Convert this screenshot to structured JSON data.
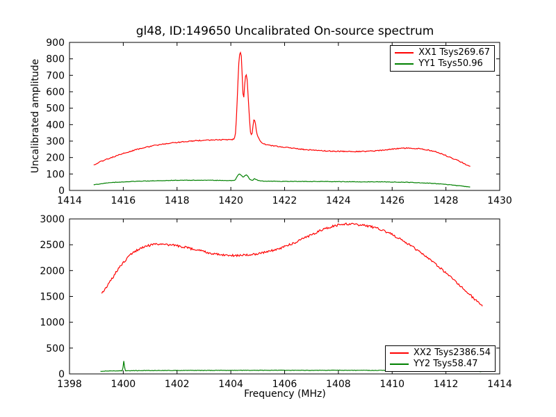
{
  "figure": {
    "title": "gl48, ID:149650 Uncalibrated On-source spectrum",
    "xlabel": "Frequency (MHz)",
    "ylabel": "Uncalibrated amplitude",
    "background": "#ffffff",
    "axis_color": "#000000",
    "series_red": "#ff0000",
    "series_green": "#008000"
  },
  "chart_data": [
    {
      "type": "line",
      "title": "gl48, ID:149650 Uncalibrated On-source spectrum",
      "xlabel": "",
      "ylabel": "Uncalibrated amplitude",
      "xlim": [
        1414,
        1430
      ],
      "ylim": [
        0,
        900
      ],
      "xticks": [
        1414,
        1416,
        1418,
        1420,
        1422,
        1424,
        1426,
        1428,
        1430
      ],
      "yticks": [
        0,
        100,
        200,
        300,
        400,
        500,
        600,
        700,
        800,
        900
      ],
      "grid": false,
      "legend_position": "upper right",
      "series": [
        {
          "name": "XX1 Tsys269.67",
          "color": "#ff0000",
          "x": [
            1414.9,
            1415.2,
            1415.6,
            1416.0,
            1416.4,
            1416.8,
            1417.2,
            1417.6,
            1418.0,
            1418.4,
            1418.8,
            1419.2,
            1419.6,
            1420.0,
            1420.1,
            1420.18,
            1420.24,
            1420.3,
            1420.35,
            1420.4,
            1420.44,
            1420.48,
            1420.52,
            1420.56,
            1420.6,
            1420.65,
            1420.7,
            1420.75,
            1420.8,
            1420.85,
            1420.9,
            1420.95,
            1421.0,
            1421.1,
            1421.2,
            1421.4,
            1421.7,
            1422.0,
            1422.4,
            1422.8,
            1423.2,
            1423.6,
            1424.0,
            1424.4,
            1424.8,
            1425.2,
            1425.6,
            1426.0,
            1426.4,
            1426.8,
            1427.2,
            1427.5,
            1427.8,
            1428.1,
            1428.4,
            1428.7,
            1428.9
          ],
          "y": [
            155,
            178,
            202,
            224,
            244,
            261,
            274,
            284,
            292,
            298,
            303,
            306,
            308,
            308,
            312,
            360,
            560,
            780,
            838,
            800,
            620,
            565,
            650,
            705,
            688,
            555,
            420,
            340,
            352,
            430,
            424,
            360,
            330,
            300,
            286,
            275,
            268,
            262,
            255,
            248,
            243,
            240,
            238,
            237,
            237,
            239,
            244,
            251,
            257,
            256,
            249,
            240,
            225,
            205,
            185,
            162,
            145
          ]
        },
        {
          "name": "YY1 Tsys50.96",
          "color": "#008000",
          "x": [
            1414.9,
            1415.4,
            1416.0,
            1416.6,
            1417.2,
            1417.8,
            1418.4,
            1419.0,
            1419.6,
            1420.0,
            1420.15,
            1420.25,
            1420.32,
            1420.4,
            1420.47,
            1420.52,
            1420.58,
            1420.65,
            1420.72,
            1420.8,
            1420.88,
            1420.95,
            1421.05,
            1421.2,
            1421.5,
            1422.0,
            1422.5,
            1423.0,
            1423.5,
            1424.0,
            1424.5,
            1425.0,
            1425.5,
            1426.0,
            1426.5,
            1427.0,
            1427.4,
            1427.8,
            1428.2,
            1428.5,
            1428.9
          ],
          "y": [
            35,
            45,
            52,
            56,
            59,
            61,
            62,
            62,
            61,
            60,
            63,
            88,
            100,
            90,
            80,
            90,
            94,
            82,
            66,
            62,
            70,
            65,
            59,
            57,
            56,
            55,
            55,
            54,
            54,
            53,
            53,
            52,
            52,
            51,
            50,
            47,
            44,
            39,
            33,
            28,
            20
          ]
        }
      ]
    },
    {
      "type": "line",
      "title": "",
      "xlabel": "Frequency (MHz)",
      "ylabel": "",
      "xlim": [
        1398,
        1414
      ],
      "ylim": [
        0,
        3000
      ],
      "xticks": [
        1398,
        1400,
        1402,
        1404,
        1406,
        1408,
        1410,
        1412,
        1414
      ],
      "yticks": [
        0,
        500,
        1000,
        1500,
        2000,
        2500,
        3000
      ],
      "grid": false,
      "legend_position": "lower right",
      "series": [
        {
          "name": "XX2 Tsys2386.54",
          "color": "#ff0000",
          "x": [
            1399.2,
            1399.4,
            1399.6,
            1399.8,
            1400.0,
            1400.2,
            1400.4,
            1400.6,
            1400.8,
            1401.0,
            1401.2,
            1401.4,
            1401.6,
            1401.8,
            1402.0,
            1402.3,
            1402.6,
            1402.9,
            1403.2,
            1403.5,
            1403.8,
            1404.1,
            1404.4,
            1404.7,
            1405.0,
            1405.3,
            1405.6,
            1405.9,
            1406.2,
            1406.5,
            1406.8,
            1407.1,
            1407.4,
            1407.7,
            1408.0,
            1408.3,
            1408.6,
            1408.9,
            1409.2,
            1409.5,
            1409.8,
            1410.1,
            1410.4,
            1410.7,
            1411.0,
            1411.3,
            1411.6,
            1411.9,
            1412.2,
            1412.5,
            1412.8,
            1413.0,
            1413.2,
            1413.35
          ],
          "y": [
            1550,
            1700,
            1860,
            2020,
            2150,
            2270,
            2360,
            2420,
            2465,
            2490,
            2505,
            2510,
            2505,
            2495,
            2480,
            2450,
            2415,
            2380,
            2345,
            2315,
            2298,
            2292,
            2295,
            2305,
            2325,
            2355,
            2395,
            2445,
            2505,
            2570,
            2645,
            2720,
            2790,
            2845,
            2880,
            2898,
            2895,
            2880,
            2850,
            2805,
            2745,
            2670,
            2580,
            2480,
            2370,
            2255,
            2130,
            2000,
            1865,
            1725,
            1580,
            1480,
            1380,
            1310
          ]
        },
        {
          "name": "YY2 Tsys58.47",
          "color": "#008000",
          "x": [
            1399.15,
            1399.5,
            1399.9,
            1399.97,
            1400.02,
            1400.07,
            1400.2,
            1400.6,
            1401.0,
            1402.0,
            1403.0,
            1404.0,
            1405.0,
            1406.0,
            1407.0,
            1408.0,
            1409.0,
            1410.0,
            1411.0,
            1412.0,
            1412.5,
            1413.0,
            1413.35
          ],
          "y": [
            52,
            56,
            60,
            62,
            250,
            63,
            62,
            64,
            65,
            67,
            68,
            69,
            70,
            70,
            70,
            70,
            69,
            68,
            66,
            62,
            58,
            52,
            45
          ]
        }
      ]
    }
  ]
}
